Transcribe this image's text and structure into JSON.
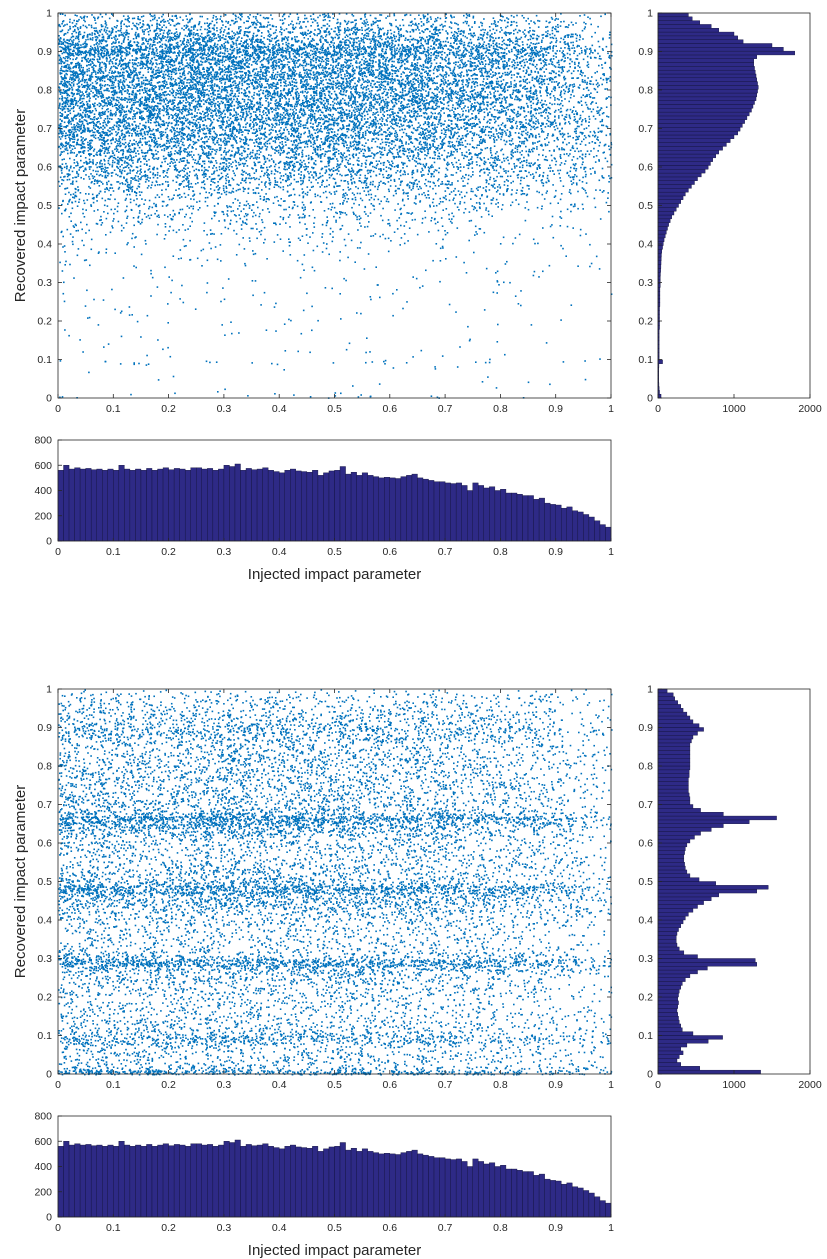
{
  "chart_data": [
    {
      "panel": "top",
      "type": "scatter",
      "xlabel": "Injected impact parameter",
      "ylabel": "Recovered impact parameter",
      "xlim": [
        0,
        1
      ],
      "ylim": [
        0,
        1
      ],
      "x_ticks": [
        "0",
        "0.1",
        "0.2",
        "0.3",
        "0.4",
        "0.5",
        "0.6",
        "0.7",
        "0.8",
        "0.9",
        "1"
      ],
      "y_ticks": [
        "0",
        "0.1",
        "0.2",
        "0.3",
        "0.4",
        "0.5",
        "0.6",
        "0.7",
        "0.8",
        "0.9",
        "1"
      ],
      "point_color": "#0072BD",
      "recovered_density_peaks": [
        {
          "y": 0.89,
          "strength": "high"
        },
        {
          "y": 0.78,
          "strength": "broad"
        }
      ],
      "right_histogram": {
        "type": "barh",
        "xlim": [
          0,
          2000
        ],
        "x_ticks": [
          "0",
          "1000",
          "2000"
        ],
        "y_ticks": [
          "0",
          "0.1",
          "0.2",
          "0.3",
          "0.4",
          "0.5",
          "0.6",
          "0.7",
          "0.8",
          "0.9",
          "1"
        ],
        "bin_width": 0.01,
        "counts": [
          40,
          20,
          15,
          12,
          10,
          10,
          10,
          10,
          12,
          60,
          15,
          15,
          15,
          15,
          15,
          15,
          15,
          15,
          20,
          20,
          20,
          20,
          20,
          20,
          25,
          25,
          25,
          25,
          25,
          30,
          30,
          30,
          32,
          35,
          38,
          40,
          42,
          45,
          50,
          60,
          70,
          80,
          95,
          110,
          125,
          140,
          160,
          180,
          210,
          240,
          270,
          300,
          330,
          360,
          400,
          440,
          480,
          520,
          570,
          620,
          660,
          690,
          720,
          760,
          800,
          850,
          900,
          950,
          1000,
          1050,
          1080,
          1110,
          1140,
          1170,
          1200,
          1230,
          1250,
          1270,
          1290,
          1300,
          1310,
          1320,
          1310,
          1300,
          1290,
          1280,
          1270,
          1260,
          1260,
          1300,
          1800,
          1650,
          1500,
          1120,
          1050,
          1000,
          800,
          700,
          550,
          450,
          400
        ]
      },
      "bottom_histogram": {
        "type": "bar",
        "ylim": [
          0,
          800
        ],
        "y_ticks": [
          "0",
          "200",
          "400",
          "600",
          "800"
        ],
        "x_ticks": [
          "0",
          "0.1",
          "0.2",
          "0.3",
          "0.4",
          "0.5",
          "0.6",
          "0.7",
          "0.8",
          "0.9",
          "1"
        ],
        "bin_width": 0.01,
        "counts": [
          560,
          600,
          570,
          580,
          570,
          575,
          565,
          570,
          560,
          570,
          560,
          600,
          570,
          560,
          570,
          560,
          575,
          560,
          570,
          580,
          565,
          575,
          570,
          560,
          580,
          580,
          570,
          575,
          560,
          570,
          600,
          590,
          610,
          560,
          575,
          565,
          570,
          580,
          560,
          550,
          540,
          560,
          570,
          555,
          550,
          545,
          560,
          520,
          540,
          555,
          560,
          590,
          530,
          545,
          520,
          540,
          520,
          510,
          500,
          505,
          500,
          495,
          510,
          520,
          530,
          500,
          490,
          480,
          470,
          470,
          460,
          455,
          460,
          440,
          400,
          460,
          440,
          420,
          430,
          400,
          410,
          380,
          380,
          370,
          360,
          360,
          330,
          340,
          300,
          290,
          285,
          260,
          270,
          240,
          230,
          210,
          190,
          160,
          130,
          110
        ]
      }
    },
    {
      "panel": "bottom",
      "type": "scatter",
      "xlabel": "Injected impact parameter",
      "ylabel": "Recovered impact parameter",
      "xlim": [
        0,
        1
      ],
      "ylim": [
        0,
        1
      ],
      "x_ticks": [
        "0",
        "0.1",
        "0.2",
        "0.3",
        "0.4",
        "0.5",
        "0.6",
        "0.7",
        "0.8",
        "0.9",
        "1"
      ],
      "y_ticks": [
        "0",
        "0.1",
        "0.2",
        "0.3",
        "0.4",
        "0.5",
        "0.6",
        "0.7",
        "0.8",
        "0.9",
        "1"
      ],
      "point_color": "#0072BD",
      "recovered_density_peaks": [
        {
          "y": 0.0,
          "strength": "high"
        },
        {
          "y": 0.1,
          "strength": "medium"
        },
        {
          "y": 0.3,
          "strength": "high"
        },
        {
          "y": 0.5,
          "strength": "high"
        },
        {
          "y": 0.7,
          "strength": "high"
        }
      ],
      "right_histogram": {
        "type": "barh",
        "xlim": [
          0,
          2000
        ],
        "x_ticks": [
          "0",
          "1000",
          "2000"
        ],
        "y_ticks": [
          "0",
          "0.1",
          "0.2",
          "0.3",
          "0.4",
          "0.5",
          "0.6",
          "0.7",
          "0.8",
          "0.9",
          "1"
        ],
        "bin_width": 0.01,
        "counts": [
          1350,
          550,
          300,
          250,
          280,
          330,
          300,
          380,
          660,
          850,
          460,
          320,
          300,
          280,
          270,
          260,
          250,
          260,
          270,
          260,
          270,
          280,
          300,
          320,
          360,
          420,
          520,
          650,
          1300,
          1280,
          520,
          340,
          280,
          250,
          240,
          240,
          250,
          270,
          300,
          330,
          360,
          400,
          460,
          520,
          600,
          700,
          800,
          1300,
          1450,
          760,
          540,
          420,
          380,
          360,
          350,
          340,
          340,
          350,
          360,
          380,
          420,
          480,
          560,
          700,
          860,
          1200,
          1560,
          860,
          560,
          460,
          420,
          420,
          410,
          400,
          400,
          400,
          400,
          410,
          410,
          420,
          420,
          420,
          420,
          420,
          420,
          420,
          440,
          460,
          520,
          600,
          540,
          460,
          420,
          380,
          330,
          300,
          260,
          220,
          200,
          120
        ]
      },
      "bottom_histogram": {
        "type": "bar",
        "ylim": [
          0,
          800
        ],
        "y_ticks": [
          "0",
          "200",
          "400",
          "600",
          "800"
        ],
        "x_ticks": [
          "0",
          "0.1",
          "0.2",
          "0.3",
          "0.4",
          "0.5",
          "0.6",
          "0.7",
          "0.8",
          "0.9",
          "1"
        ],
        "bin_width": 0.01,
        "counts": [
          560,
          600,
          570,
          580,
          570,
          575,
          565,
          570,
          560,
          570,
          560,
          600,
          570,
          560,
          570,
          560,
          575,
          560,
          570,
          580,
          565,
          575,
          570,
          560,
          580,
          580,
          570,
          575,
          560,
          570,
          600,
          590,
          610,
          560,
          575,
          565,
          570,
          580,
          560,
          550,
          540,
          560,
          570,
          555,
          550,
          545,
          560,
          520,
          540,
          555,
          560,
          590,
          530,
          545,
          520,
          540,
          520,
          510,
          500,
          505,
          500,
          495,
          510,
          520,
          530,
          500,
          490,
          480,
          470,
          470,
          460,
          455,
          460,
          440,
          400,
          460,
          440,
          420,
          430,
          400,
          410,
          380,
          380,
          370,
          360,
          360,
          330,
          340,
          300,
          290,
          285,
          260,
          270,
          240,
          230,
          210,
          190,
          160,
          130,
          110
        ]
      }
    }
  ],
  "colors": {
    "scatter": "#0072BD",
    "hist_fill": "#2E2A86",
    "hist_edge": "#11113a",
    "axis": "#262626"
  }
}
